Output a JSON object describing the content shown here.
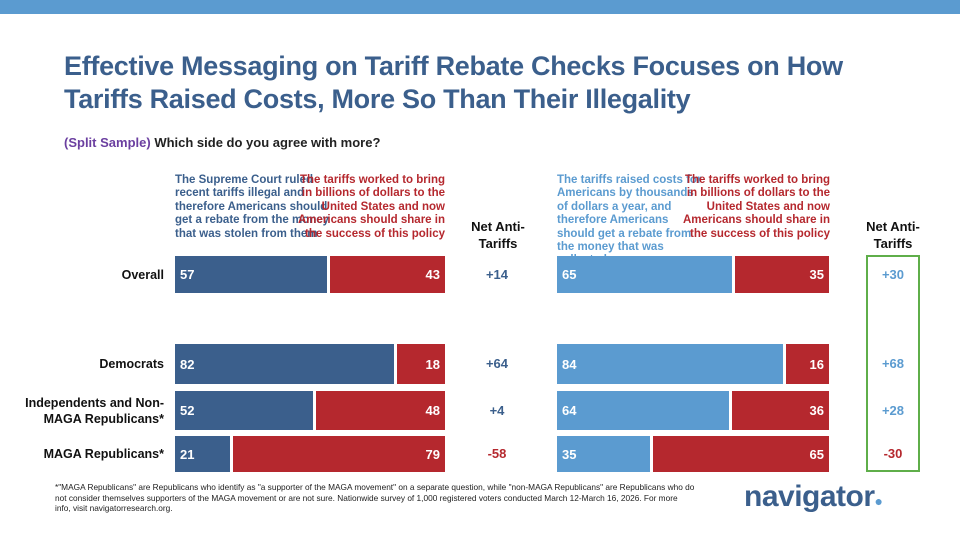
{
  "title": "Effective Messaging on Tariff Rebate Checks Focuses on How Tariffs Raised Costs, More So Than Their Illegality",
  "question_prefix": "(Split Sample)",
  "question": "Which side do you agree with more?",
  "colors": {
    "left_blue": "#3b5f8c",
    "right_blue": "#5b9bd0",
    "red": "#b5282e",
    "net_box": "#5fae4a"
  },
  "chart_data": [
    {
      "type": "bar",
      "stacked": true,
      "orientation": "horizontal",
      "categories": [
        "Overall",
        "Democrats",
        "Independents and Non-MAGA Republicans*",
        "MAGA Republicans*"
      ],
      "series": [
        {
          "name": "The Supreme Court ruled recent tariffs illegal and therefore Americans should get a rebate from the money that was stolen from them",
          "values": [
            57,
            82,
            52,
            21
          ]
        },
        {
          "name": "The tariffs worked to bring in billions of dollars to the United States and now Americans should share in the success of this policy",
          "values": [
            43,
            18,
            48,
            79
          ]
        }
      ],
      "net_label": "Net Anti-Tariffs",
      "net": [
        "+14",
        "+64",
        "+4",
        "-58"
      ],
      "xlim": [
        0,
        100
      ]
    },
    {
      "type": "bar",
      "stacked": true,
      "orientation": "horizontal",
      "categories": [
        "Overall",
        "Democrats",
        "Independents and Non-MAGA Republicans*",
        "MAGA Republicans*"
      ],
      "series": [
        {
          "name": "The tariffs raised costs for Americans by thousands of dollars a year, and therefore Americans should get a rebate from the money that was collected",
          "values": [
            65,
            84,
            64,
            35
          ]
        },
        {
          "name": "The tariffs worked to bring in billions of dollars to the United States and now Americans should share in the success of this policy",
          "values": [
            35,
            16,
            36,
            65
          ]
        }
      ],
      "net_label": "Net Anti-Tariffs",
      "net": [
        "+30",
        "+68",
        "+28",
        "-30"
      ],
      "xlim": [
        0,
        100
      ]
    }
  ],
  "footnote": "*\"MAGA Republicans\" are Republicans who identify as \"a supporter of the MAGA movement\" on a separate question, while \"non-MAGA Republicans\" are Republicans who do not consider themselves supporters of the MAGA movement or are not sure. Nationwide survey of 1,000 registered voters conducted March 12-March 16, 2026. For more info, visit navigatorresearch.org.",
  "logo": "navigator"
}
